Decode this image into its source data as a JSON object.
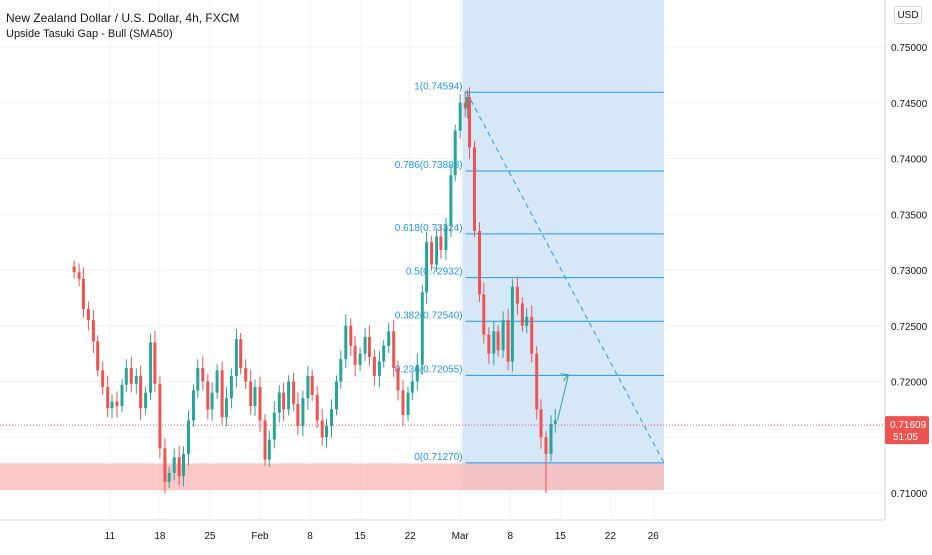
{
  "header": {
    "title": "New Zealand Dollar / U.S. Dollar, 4h, FXCM",
    "indicator": "Upside Tasuki Gap - Bull (SMA50)"
  },
  "currency_button": "USD",
  "price_tag": {
    "price": "0.71609",
    "countdown": "51:05"
  },
  "colors": {
    "up": "#26a69a",
    "down": "#ef5350",
    "fib": "#2196f3",
    "fib_label": "#2196f3",
    "highlight": "#d6e8f8",
    "support_zone": "#f9b5b5",
    "price_line": "#ef5350",
    "grid": "#f0f3fa",
    "axis_text": "#131722"
  },
  "chart_data": {
    "type": "candlestick",
    "title": "New Zealand Dollar / U.S. Dollar, 4h, FXCM",
    "subtitle": "Upside Tasuki Gap - Bull (SMA50)",
    "x_ticks": [
      "11",
      "18",
      "25",
      "Feb",
      "8",
      "15",
      "22",
      "Mar",
      "8",
      "15",
      "22",
      "26"
    ],
    "x_tick_days": [
      -21,
      -14,
      -7,
      0,
      7,
      14,
      21,
      28,
      35,
      42,
      49,
      55
    ],
    "ylim": [
      0.7086,
      0.7527
    ],
    "y_ticks": [
      "0.75000",
      "0.74500",
      "0.74000",
      "0.73500",
      "0.73000",
      "0.72500",
      "0.72000",
      "0.71500",
      "0.71000"
    ],
    "fib_levels": [
      {
        "label": "1(0.74594)",
        "value": 0.74594
      },
      {
        "label": "0.786(0.73888)",
        "value": 0.73888
      },
      {
        "label": "0.618(0.73324)",
        "value": 0.73324
      },
      {
        "label": "0.5(0.72932)",
        "value": 0.72932
      },
      {
        "label": "0.382(0.72540)",
        "value": 0.7254
      },
      {
        "label": "0.236(0.72055)",
        "value": 0.72055
      },
      {
        "label": "0(0.71270)",
        "value": 0.7127
      }
    ],
    "support_zone": [
      0.71025,
      0.71265
    ],
    "last_price": 0.71609,
    "closes": [
      [
        -26.0,
        0.7298
      ],
      [
        -25.3,
        0.7292
      ],
      [
        -24.7,
        0.7265
      ],
      [
        -24.0,
        0.7255
      ],
      [
        -23.3,
        0.7236
      ],
      [
        -22.7,
        0.721
      ],
      [
        -22.0,
        0.7195
      ],
      [
        -21.3,
        0.7176
      ],
      [
        -20.7,
        0.7182
      ],
      [
        -20.0,
        0.7178
      ],
      [
        -19.3,
        0.7197
      ],
      [
        -18.7,
        0.7212
      ],
      [
        -18.0,
        0.7198
      ],
      [
        -17.3,
        0.7205
      ],
      [
        -16.7,
        0.7176
      ],
      [
        -16.0,
        0.719
      ],
      [
        -15.3,
        0.7235
      ],
      [
        -14.7,
        0.7198
      ],
      [
        -14.0,
        0.714
      ],
      [
        -13.3,
        0.711
      ],
      [
        -12.7,
        0.7118
      ],
      [
        -12.0,
        0.7132
      ],
      [
        -11.3,
        0.7115
      ],
      [
        -10.7,
        0.7135
      ],
      [
        -10.0,
        0.7165
      ],
      [
        -9.3,
        0.7192
      ],
      [
        -8.7,
        0.7212
      ],
      [
        -8.0,
        0.72
      ],
      [
        -7.3,
        0.7175
      ],
      [
        -6.7,
        0.719
      ],
      [
        -6.0,
        0.721
      ],
      [
        -5.3,
        0.7168
      ],
      [
        -4.7,
        0.7185
      ],
      [
        -4.0,
        0.7205
      ],
      [
        -3.3,
        0.7238
      ],
      [
        -2.7,
        0.7212
      ],
      [
        -2.0,
        0.72
      ],
      [
        -1.3,
        0.7178
      ],
      [
        -0.7,
        0.7195
      ],
      [
        0.0,
        0.7165
      ],
      [
        0.7,
        0.713
      ],
      [
        1.3,
        0.7148
      ],
      [
        2.0,
        0.7172
      ],
      [
        2.7,
        0.719
      ],
      [
        3.3,
        0.7175
      ],
      [
        4.0,
        0.72
      ],
      [
        4.7,
        0.718
      ],
      [
        5.3,
        0.716
      ],
      [
        6.0,
        0.7185
      ],
      [
        6.7,
        0.7205
      ],
      [
        7.3,
        0.7188
      ],
      [
        8.0,
        0.7165
      ],
      [
        8.7,
        0.715
      ],
      [
        9.3,
        0.716
      ],
      [
        10.0,
        0.7175
      ],
      [
        10.7,
        0.72
      ],
      [
        11.3,
        0.722
      ],
      [
        12.0,
        0.725
      ],
      [
        12.7,
        0.7232
      ],
      [
        13.3,
        0.7215
      ],
      [
        14.0,
        0.7225
      ],
      [
        14.7,
        0.724
      ],
      [
        15.3,
        0.7222
      ],
      [
        16.0,
        0.7205
      ],
      [
        16.7,
        0.7218
      ],
      [
        17.3,
        0.7232
      ],
      [
        18.0,
        0.7245
      ],
      [
        18.7,
        0.7212
      ],
      [
        19.3,
        0.7192
      ],
      [
        20.0,
        0.717
      ],
      [
        20.7,
        0.719
      ],
      [
        21.3,
        0.72
      ],
      [
        22.0,
        0.7215
      ],
      [
        22.7,
        0.728
      ],
      [
        23.3,
        0.7325
      ],
      [
        24.0,
        0.7305
      ],
      [
        24.7,
        0.733
      ],
      [
        25.3,
        0.7318
      ],
      [
        26.0,
        0.734
      ],
      [
        26.7,
        0.7385
      ],
      [
        27.3,
        0.7425
      ],
      [
        28.0,
        0.745
      ],
      [
        28.7,
        0.7445
      ],
      [
        29.0,
        0.7455
      ],
      [
        29.3,
        0.741
      ],
      [
        30.0,
        0.7335
      ],
      [
        30.7,
        0.7278
      ],
      [
        31.3,
        0.7242
      ],
      [
        32.0,
        0.7225
      ],
      [
        32.7,
        0.7245
      ],
      [
        33.3,
        0.7228
      ],
      [
        34.0,
        0.7255
      ],
      [
        34.7,
        0.7218
      ],
      [
        35.3,
        0.7285
      ],
      [
        36.0,
        0.727
      ],
      [
        36.7,
        0.725
      ],
      [
        37.3,
        0.7258
      ],
      [
        38.0,
        0.7225
      ],
      [
        38.7,
        0.7175
      ],
      [
        39.3,
        0.715
      ],
      [
        40.0,
        0.7135
      ],
      [
        40.7,
        0.7162
      ],
      [
        41.3,
        0.7165
      ]
    ],
    "projection": [
      [
        41.6,
        0.7165
      ],
      [
        42.3,
        0.7206
      ]
    ],
    "trend_line": [
      [
        28.9,
        0.74594
      ],
      [
        56.5,
        0.7127
      ]
    ],
    "highlight_range_days": [
      28.3,
      56.5
    ]
  }
}
